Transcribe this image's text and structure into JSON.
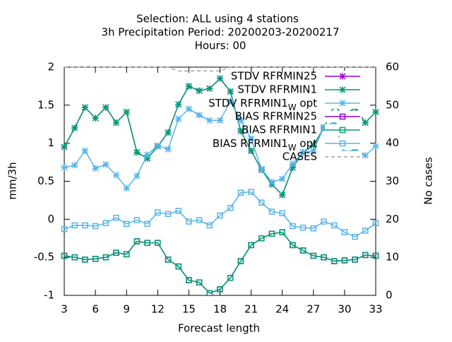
{
  "chart_data": {
    "type": "line",
    "title": [
      "Selection: ALL using     4 stations",
      "3h Precipitation   Period: 20200203-20200217",
      "Hours:  00"
    ],
    "xlabel": "Forecast length",
    "ylabel": "mm/3h",
    "y2label": "No cases",
    "x": [
      3,
      4,
      5,
      6,
      7,
      8,
      9,
      10,
      11,
      12,
      13,
      14,
      15,
      16,
      17,
      18,
      19,
      20,
      21,
      22,
      23,
      24,
      25,
      26,
      27,
      28,
      29,
      30,
      31,
      32,
      33
    ],
    "xlim": [
      3,
      33
    ],
    "xticks": [
      3,
      6,
      9,
      12,
      15,
      18,
      21,
      24,
      27,
      30,
      33
    ],
    "ylim": [
      -1,
      2
    ],
    "yticks": [
      -1,
      -0.5,
      0,
      0.5,
      1,
      1.5,
      2
    ],
    "y2lim": [
      0,
      60
    ],
    "y2ticks": [
      0,
      10,
      20,
      30,
      40,
      50,
      60
    ],
    "grid": false,
    "legend": "top-right",
    "series": [
      {
        "name": "STDV RFRMIN25",
        "color": "#9400d3",
        "marker": "star",
        "values": [
          0.95,
          1.2,
          1.47,
          1.33,
          1.47,
          1.27,
          1.41,
          0.88,
          0.8,
          0.96,
          1.14,
          1.51,
          1.75,
          1.69,
          1.72,
          1.85,
          1.68,
          1.16,
          0.9,
          0.65,
          0.46,
          0.32,
          0.68,
          0.88,
          0.97,
          1.2,
          1.49,
          1.36,
          1.47,
          1.27,
          1.41
        ]
      },
      {
        "name": "STDV RFRMIN1",
        "color": "#009e73",
        "marker": "star",
        "values": [
          0.95,
          1.2,
          1.47,
          1.33,
          1.47,
          1.27,
          1.41,
          0.88,
          0.8,
          0.96,
          1.14,
          1.51,
          1.75,
          1.69,
          1.72,
          1.85,
          1.68,
          1.16,
          0.9,
          0.65,
          0.46,
          0.32,
          0.68,
          0.88,
          0.97,
          1.2,
          1.49,
          1.36,
          1.47,
          1.27,
          1.41
        ]
      },
      {
        "name": "STDV RFRMIN1_W opt",
        "color": "#56b4e9",
        "marker": "star",
        "values": [
          0.68,
          0.71,
          0.9,
          0.67,
          0.72,
          0.58,
          0.41,
          0.57,
          0.85,
          0.97,
          0.92,
          1.32,
          1.45,
          1.37,
          1.3,
          1.3,
          1.55,
          1.3,
          1.06,
          0.66,
          0.49,
          0.53,
          0.73,
          0.88,
          0.9,
          1.21,
          1.28,
          0.87,
          0.92,
          0.84,
          0.96
        ]
      },
      {
        "name": "BIAS RFRMIN25",
        "color": "#9400d3",
        "marker": "square",
        "values": [
          -0.48,
          -0.5,
          -0.53,
          -0.52,
          -0.5,
          -0.44,
          -0.46,
          -0.29,
          -0.31,
          -0.31,
          -0.53,
          -0.62,
          -0.8,
          -0.83,
          -0.97,
          -0.92,
          -0.77,
          -0.55,
          -0.34,
          -0.25,
          -0.19,
          -0.17,
          -0.34,
          -0.41,
          -0.48,
          -0.5,
          -0.55,
          -0.54,
          -0.53,
          -0.47,
          -0.48
        ]
      },
      {
        "name": "BIAS RFRMIN1",
        "color": "#009e73",
        "marker": "square",
        "values": [
          -0.48,
          -0.5,
          -0.53,
          -0.52,
          -0.5,
          -0.44,
          -0.46,
          -0.29,
          -0.31,
          -0.31,
          -0.53,
          -0.62,
          -0.8,
          -0.83,
          -0.97,
          -0.92,
          -0.77,
          -0.55,
          -0.34,
          -0.25,
          -0.19,
          -0.17,
          -0.34,
          -0.41,
          -0.48,
          -0.5,
          -0.55,
          -0.54,
          -0.53,
          -0.47,
          -0.48
        ]
      },
      {
        "name": "BIAS RFRMIN1_W opt",
        "color": "#56b4e9",
        "marker": "square",
        "values": [
          -0.13,
          -0.08,
          -0.08,
          -0.09,
          -0.05,
          0.02,
          -0.06,
          -0.01,
          -0.06,
          0.09,
          0.07,
          0.11,
          -0.03,
          -0.01,
          -0.08,
          0.05,
          0.15,
          0.35,
          0.36,
          0.22,
          0.1,
          0.08,
          -0.09,
          -0.11,
          -0.12,
          -0.03,
          -0.08,
          -0.17,
          -0.23,
          -0.15,
          -0.05
        ]
      },
      {
        "name": "CASES",
        "color": "#a0a0a0",
        "dash": true,
        "axis": "y2",
        "values": [
          60,
          60,
          60,
          60,
          60,
          60,
          60,
          60,
          60,
          60,
          60,
          59,
          59,
          59,
          59,
          59,
          60,
          60,
          60,
          60,
          60,
          60,
          60,
          60,
          60,
          60,
          60,
          60,
          60,
          60,
          60
        ]
      }
    ]
  }
}
